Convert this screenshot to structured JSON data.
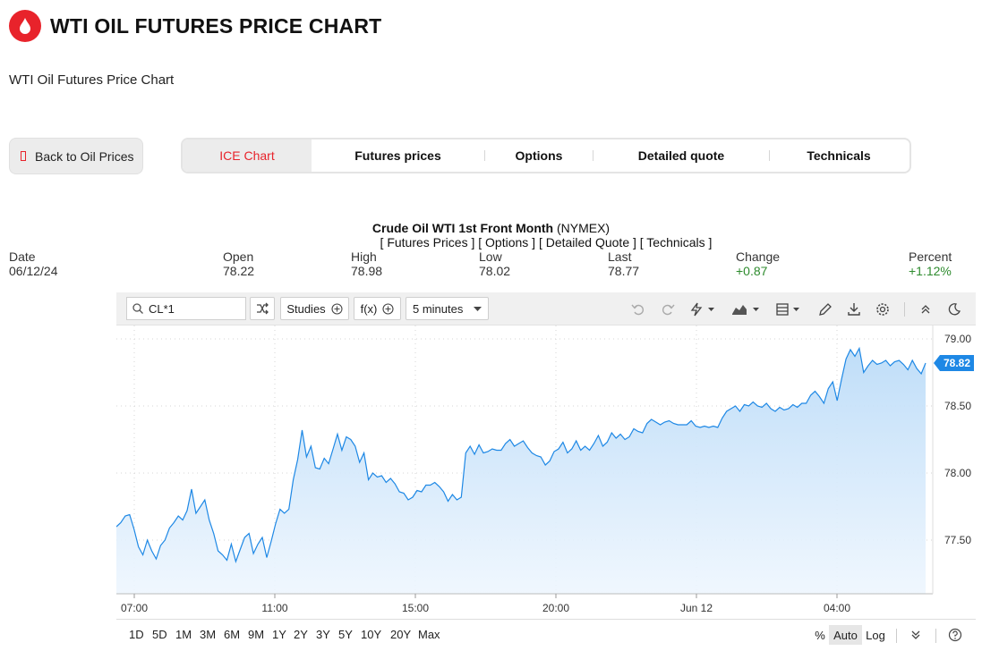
{
  "header": {
    "title": "WTI OIL FUTURES PRICE CHART",
    "subtitle": "WTI Oil Futures Price Chart",
    "logo_icon": "oil-drop-icon",
    "accent": "#e8232b"
  },
  "back_button": {
    "label": "Back to Oil Prices"
  },
  "tabs": [
    {
      "label": "ICE Chart",
      "active": true
    },
    {
      "label": "Futures prices"
    },
    {
      "label": "Options"
    },
    {
      "label": "Detailed quote"
    },
    {
      "label": "Technicals"
    }
  ],
  "quote": {
    "title": "Crude Oil WTI 1st Front Month",
    "exchange": "(NYMEX)",
    "links": "[ Futures Prices ] [ Options ] [ Detailed Quote ] [ Technicals ]",
    "stats": [
      {
        "label": "Date",
        "value": "06/12/24"
      },
      {
        "label": "Open",
        "value": "78.22"
      },
      {
        "label": "High",
        "value": "78.98"
      },
      {
        "label": "Low",
        "value": "78.02"
      },
      {
        "label": "Last",
        "value": "78.77"
      },
      {
        "label": "Change",
        "value": "+0.87"
      },
      {
        "label": "Percent",
        "value": "+1.12%"
      }
    ]
  },
  "toolbar": {
    "symbol": "CL*1",
    "studies_label": "Studies",
    "fx_label": "f(x)",
    "interval_label": "5 minutes",
    "icons": [
      "compare-icon",
      "plus-circle-icon",
      "undo-icon",
      "redo-icon",
      "lightning-icon",
      "chart-type-icon",
      "layout-icon",
      "pencil-icon",
      "download-icon",
      "gear-icon",
      "collapse-icon",
      "dark-mode-icon"
    ]
  },
  "chart_data": {
    "type": "area",
    "symbol": "CL*1",
    "interval": "5 minutes",
    "x_tick_labels": [
      "07:00",
      "11:00",
      "15:00",
      "20:00",
      "Jun 12",
      "04:00"
    ],
    "y_tick_labels": [
      "79.00",
      "78.50",
      "78.00",
      "77.50"
    ],
    "ylim": [
      77.1,
      79.1
    ],
    "last_price": "78.82",
    "grid": true,
    "line_color": "#1e88e5",
    "series": [
      {
        "values": [
          77.6,
          77.63,
          77.68,
          77.69,
          77.58,
          77.45,
          77.39,
          77.5,
          77.42,
          77.36,
          77.46,
          77.5,
          77.59,
          77.63,
          77.68,
          77.65,
          77.72,
          77.88,
          77.7,
          77.75,
          77.8,
          77.65,
          77.55,
          77.42,
          77.39,
          77.35,
          77.47,
          77.34,
          77.43,
          77.52,
          77.55,
          77.4,
          77.47,
          77.52,
          77.37,
          77.49,
          77.62,
          77.73,
          77.7,
          77.73,
          77.95,
          78.1,
          78.32,
          78.12,
          78.2,
          78.04,
          78.03,
          78.11,
          78.07,
          78.18,
          78.29,
          78.17,
          78.27,
          78.25,
          78.2,
          78.08,
          78.15,
          77.95,
          78.0,
          77.97,
          77.98,
          77.93,
          77.96,
          77.92,
          77.86,
          77.85,
          77.8,
          77.82,
          77.87,
          77.86,
          77.91,
          77.91,
          77.93,
          77.9,
          77.86,
          77.79,
          77.84,
          77.8,
          77.82,
          78.15,
          78.2,
          78.14,
          78.21,
          78.15,
          78.16,
          78.18,
          78.17,
          78.17,
          78.22,
          78.25,
          78.2,
          78.22,
          78.24,
          78.19,
          78.15,
          78.13,
          78.12,
          78.06,
          78.09,
          78.16,
          78.18,
          78.23,
          78.15,
          78.18,
          78.24,
          78.17,
          78.2,
          78.17,
          78.22,
          78.28,
          78.2,
          78.23,
          78.3,
          78.26,
          78.29,
          78.25,
          78.27,
          78.33,
          78.31,
          78.3,
          78.37,
          78.4,
          78.38,
          78.36,
          78.38,
          78.39,
          78.37,
          78.36,
          78.36,
          78.36,
          78.39,
          78.35,
          78.34,
          78.35,
          78.34,
          78.35,
          78.34,
          78.41,
          78.46,
          78.48,
          78.5,
          78.46,
          78.51,
          78.5,
          78.53,
          78.5,
          78.49,
          78.52,
          78.48,
          78.46,
          78.49,
          78.47,
          78.48,
          78.51,
          78.49,
          78.52,
          78.52,
          78.58,
          78.61,
          78.57,
          78.52,
          78.63,
          78.68,
          78.54,
          78.7,
          78.85,
          78.92,
          78.87,
          78.93,
          78.75,
          78.8,
          78.84,
          78.81,
          78.82,
          78.84,
          78.8,
          78.83,
          78.84,
          78.81,
          78.77,
          78.84,
          78.78,
          78.74,
          78.82
        ]
      }
    ]
  },
  "range_bar": {
    "ranges": [
      "1D",
      "5D",
      "1M",
      "3M",
      "6M",
      "9M",
      "1Y",
      "2Y",
      "3Y",
      "5Y",
      "10Y",
      "20Y",
      "Max"
    ],
    "scale_options": [
      {
        "label": "%"
      },
      {
        "label": "Auto",
        "active": true
      },
      {
        "label": "Log"
      }
    ],
    "icons": [
      "chevron-double-down-icon",
      "help-icon"
    ]
  }
}
